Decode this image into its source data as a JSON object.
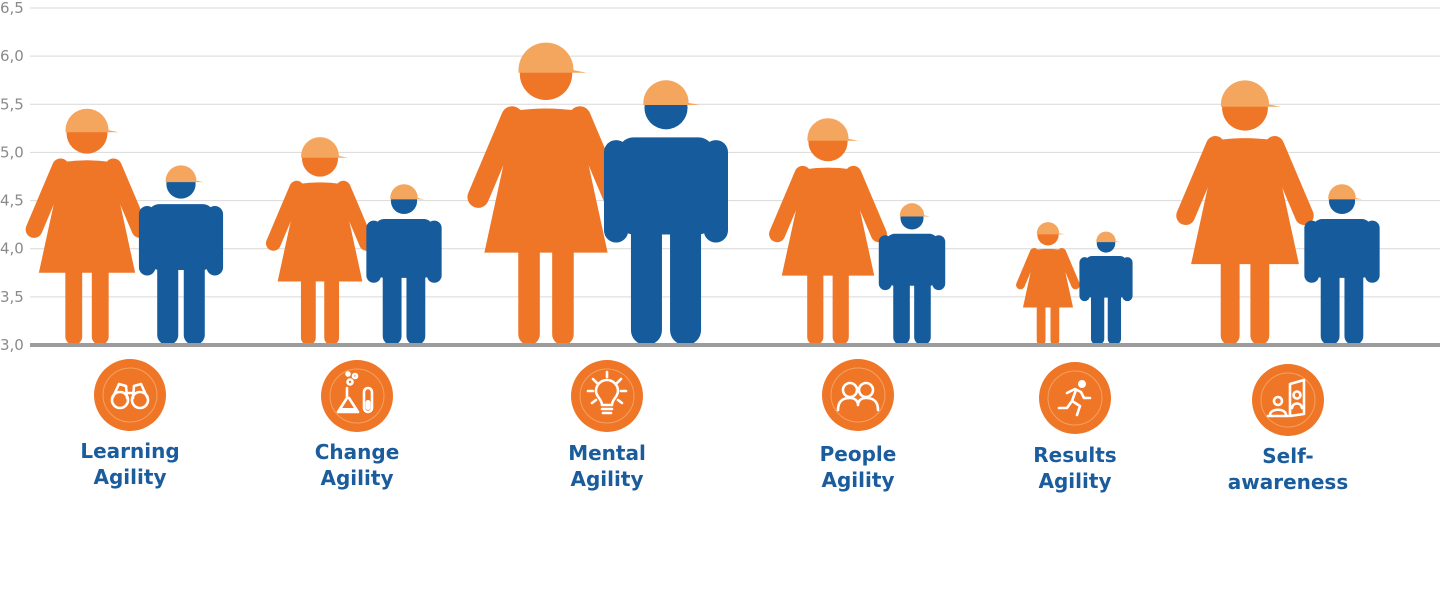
{
  "chart_data": {
    "type": "bar",
    "title": "",
    "xlabel": "",
    "ylabel": "",
    "ylim": [
      3.0,
      6.5
    ],
    "yticks": [
      "3,0",
      "3,5",
      "4,0",
      "4,5",
      "5,0",
      "5,5",
      "6,0",
      "6,5"
    ],
    "grid": true,
    "legend": "none",
    "categories": [
      {
        "label1": "Learning",
        "label2": "Agility",
        "icon": "binoculars-icon"
      },
      {
        "label1": "Change",
        "label2": "Agility",
        "icon": "flask-icon"
      },
      {
        "label1": "Mental",
        "label2": "Agility",
        "icon": "lightbulb-icon"
      },
      {
        "label1": "People",
        "label2": "Agility",
        "icon": "people-icon"
      },
      {
        "label1": "Results",
        "label2": "Agility",
        "icon": "running-icon"
      },
      {
        "label1": "Self-",
        "label2": "awareness",
        "icon": "mirror-icon"
      }
    ],
    "series": [
      {
        "figure": "female",
        "color": "#ef7527",
        "values": [
          5.5,
          5.2,
          6.2,
          5.4,
          4.3,
          5.8
        ]
      },
      {
        "figure": "male",
        "color": "#165b9c",
        "values": [
          4.9,
          4.7,
          5.8,
          4.5,
          4.2,
          4.7
        ]
      }
    ]
  },
  "colors": {
    "female": "#ef7527",
    "male": "#165b9c",
    "helmet": "#f4a55e",
    "grid": "#d9d9d9",
    "axis": "#9c9c9c",
    "label": "#1a5c9c",
    "icon_circle": "#ef7527",
    "icon_inner": "#ffffff"
  }
}
